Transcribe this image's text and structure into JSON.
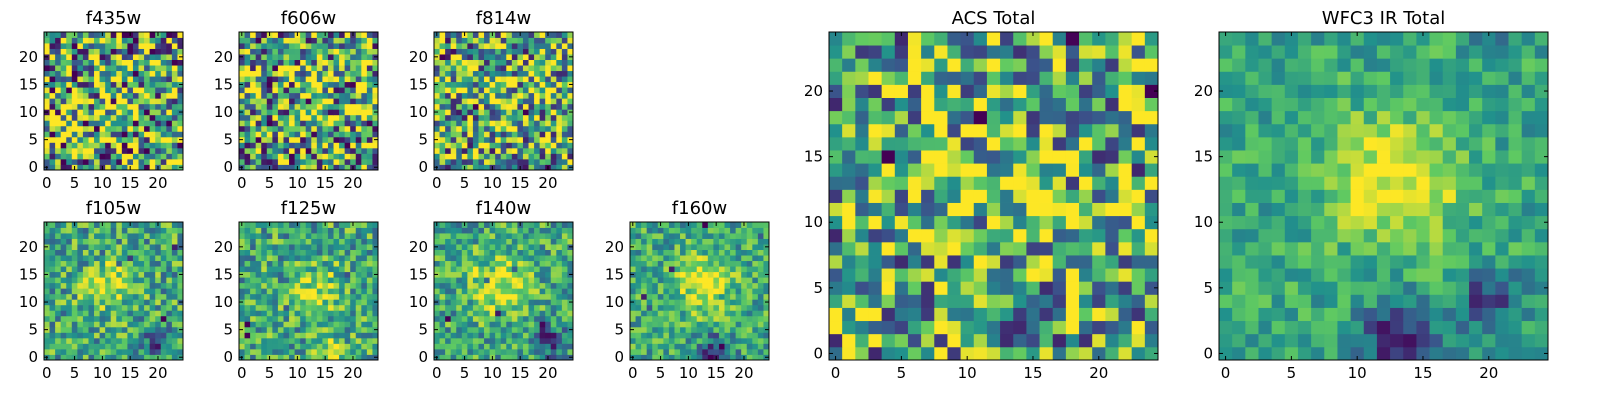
{
  "colormap": [
    "#440154",
    "#3b528b",
    "#21918c",
    "#5ec962",
    "#fde725"
  ],
  "chart_data": [
    {
      "type": "heatmap",
      "title": "f435w",
      "xticks": [
        "0",
        "5",
        "10",
        "15",
        "20"
      ],
      "yticks": [
        "0",
        "5",
        "10",
        "15",
        "20"
      ],
      "xlim": [
        0,
        25
      ],
      "ylim": [
        0,
        25
      ],
      "grid": false,
      "pattern": {
        "seed": 11,
        "noise": 0.65,
        "blobs": [
          [
            12,
            12,
            4,
            0.05
          ]
        ]
      }
    },
    {
      "type": "heatmap",
      "title": "f606w",
      "xticks": [
        "0",
        "5",
        "10",
        "15",
        "20"
      ],
      "yticks": [
        "0",
        "5",
        "10",
        "15",
        "20"
      ],
      "xlim": [
        0,
        25
      ],
      "ylim": [
        0,
        25
      ],
      "grid": false,
      "pattern": {
        "seed": 23,
        "noise": 0.6,
        "blobs": [
          [
            12,
            13,
            4,
            0.1
          ]
        ]
      }
    },
    {
      "type": "heatmap",
      "title": "f814w",
      "xticks": [
        "0",
        "5",
        "10",
        "15",
        "20"
      ],
      "yticks": [
        "0",
        "5",
        "10",
        "15",
        "20"
      ],
      "xlim": [
        0,
        25
      ],
      "ylim": [
        0,
        25
      ],
      "grid": false,
      "pattern": {
        "seed": 37,
        "noise": 0.55,
        "blobs": [
          [
            12,
            13,
            4,
            0.15
          ]
        ]
      }
    },
    {
      "type": "heatmap",
      "title": "ACS Total",
      "xticks": [
        "0",
        "5",
        "10",
        "15",
        "20"
      ],
      "yticks": [
        "0",
        "5",
        "10",
        "15",
        "20"
      ],
      "xlim": [
        0,
        25
      ],
      "ylim": [
        0,
        25
      ],
      "grid": false,
      "pattern": {
        "seed": 41,
        "noise": 0.5,
        "blobs": [
          [
            13,
            13,
            4,
            0.15
          ]
        ]
      }
    },
    {
      "type": "heatmap",
      "title": "WFC3 IR Total",
      "xticks": [
        "0",
        "5",
        "10",
        "15",
        "20"
      ],
      "yticks": [
        "0",
        "5",
        "10",
        "15",
        "20"
      ],
      "xlim": [
        0,
        25
      ],
      "ylim": [
        0,
        25
      ],
      "grid": false,
      "pattern": {
        "seed": 53,
        "noise": 0.18,
        "blobs": [
          [
            13,
            13,
            3.5,
            0.42
          ],
          [
            13,
            1,
            2,
            -0.55
          ],
          [
            20,
            4,
            1.6,
            -0.45
          ],
          [
            20,
            24,
            1.2,
            -0.3
          ]
        ]
      }
    },
    {
      "type": "heatmap",
      "title": "f105w",
      "xticks": [
        "0",
        "5",
        "10",
        "15",
        "20"
      ],
      "yticks": [
        "0",
        "5",
        "10",
        "15",
        "20"
      ],
      "xlim": [
        0,
        25
      ],
      "ylim": [
        0,
        25
      ],
      "grid": false,
      "pattern": {
        "seed": 61,
        "noise": 0.3,
        "blobs": [
          [
            11,
            13,
            3,
            0.35
          ],
          [
            20,
            3,
            2,
            -0.4
          ]
        ]
      }
    },
    {
      "type": "heatmap",
      "title": "f125w",
      "xticks": [
        "0",
        "5",
        "10",
        "15",
        "20"
      ],
      "yticks": [
        "0",
        "5",
        "10",
        "15",
        "20"
      ],
      "xlim": [
        0,
        25
      ],
      "ylim": [
        0,
        25
      ],
      "grid": false,
      "pattern": {
        "seed": 73,
        "noise": 0.3,
        "blobs": [
          [
            14,
            12,
            3,
            0.3
          ],
          [
            16,
            1,
            2,
            0.3
          ]
        ]
      }
    },
    {
      "type": "heatmap",
      "title": "f140w",
      "xticks": [
        "0",
        "5",
        "10",
        "15",
        "20"
      ],
      "yticks": [
        "0",
        "5",
        "10",
        "15",
        "20"
      ],
      "xlim": [
        0,
        25
      ],
      "ylim": [
        0,
        25
      ],
      "grid": false,
      "pattern": {
        "seed": 83,
        "noise": 0.28,
        "blobs": [
          [
            11,
            13,
            3.5,
            0.35
          ],
          [
            20,
            3,
            2,
            -0.45
          ]
        ]
      }
    },
    {
      "type": "heatmap",
      "title": "f160w",
      "xticks": [
        "0",
        "5",
        "10",
        "15",
        "20"
      ],
      "yticks": [
        "0",
        "5",
        "10",
        "15",
        "20"
      ],
      "xlim": [
        0,
        25
      ],
      "ylim": [
        0,
        25
      ],
      "grid": false,
      "pattern": {
        "seed": 97,
        "noise": 0.25,
        "blobs": [
          [
            13,
            13,
            3.5,
            0.4
          ],
          [
            15,
            1,
            2,
            -0.5
          ]
        ]
      }
    }
  ]
}
